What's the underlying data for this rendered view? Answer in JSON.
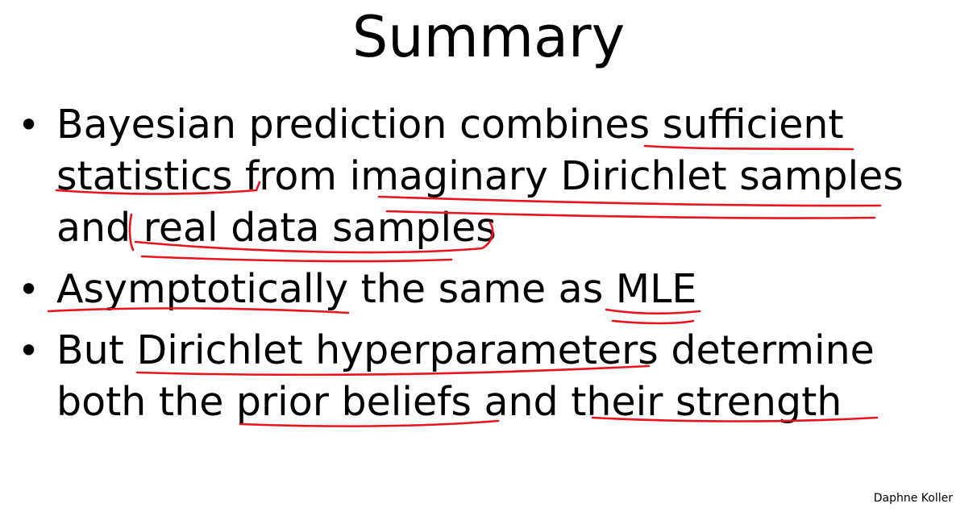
{
  "slide": {
    "title": "Summary",
    "bullets": [
      {
        "symbol": "•",
        "lines": [
          "Bayesian prediction combines sufficient",
          "statistics from imaginary Dirichlet samples",
          "and real data samples"
        ]
      },
      {
        "symbol": "•",
        "lines": [
          "Asymptotically the same as MLE"
        ]
      },
      {
        "symbol": "•",
        "lines": [
          "But Dirichlet hyperparameters determine",
          "both the prior beliefs and their strength"
        ]
      }
    ],
    "footer": "Daphne Koller"
  },
  "annotations": {
    "ink_color": "#e8141e",
    "text_color": "#000000",
    "background": "#ffffff"
  }
}
